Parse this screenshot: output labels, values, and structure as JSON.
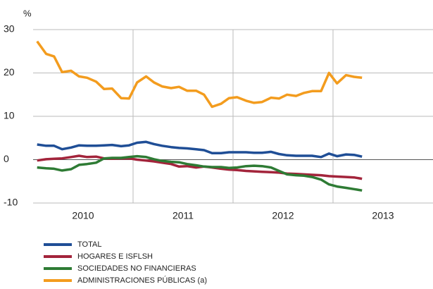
{
  "chart_data": {
    "type": "line",
    "ylabel": "%",
    "x": [
      2010.04,
      2010.13,
      2010.21,
      2010.29,
      2010.38,
      2010.46,
      2010.54,
      2010.63,
      2010.71,
      2010.79,
      2010.88,
      2010.96,
      2011.04,
      2011.13,
      2011.21,
      2011.29,
      2011.38,
      2011.46,
      2011.54,
      2011.63,
      2011.71,
      2011.79,
      2011.88,
      2011.96,
      2012.04,
      2012.13,
      2012.21,
      2012.29,
      2012.38,
      2012.46,
      2012.54,
      2012.63,
      2012.71,
      2012.79,
      2012.88,
      2012.96,
      2013.04,
      2013.13,
      2013.21,
      2013.29
    ],
    "xlim": [
      2010,
      2014
    ],
    "xticks": [
      {
        "value": 2010.5,
        "label": "2010"
      },
      {
        "value": 2011.5,
        "label": "2011"
      },
      {
        "value": 2012.5,
        "label": "2012"
      },
      {
        "value": 2013.5,
        "label": "2013"
      }
    ],
    "xgrid": [
      2011,
      2012,
      2013
    ],
    "ylim": [
      -10,
      30
    ],
    "yticks": [
      -10,
      0,
      10,
      20,
      30
    ],
    "grid": true,
    "series": [
      {
        "name": "TOTAL",
        "color": "#1f4e96",
        "values": [
          3.5,
          3.2,
          3.2,
          2.4,
          2.8,
          3.3,
          3.2,
          3.2,
          3.3,
          3.4,
          3.1,
          3.3,
          3.9,
          4.1,
          3.6,
          3.2,
          2.9,
          2.7,
          2.6,
          2.4,
          2.2,
          1.5,
          1.5,
          1.7,
          1.7,
          1.7,
          1.6,
          1.6,
          1.8,
          1.3,
          1.0,
          0.9,
          0.9,
          0.9,
          0.6,
          1.4,
          0.8,
          1.2,
          1.1,
          0.7
        ]
      },
      {
        "name": "HOGARES E ISFLSH",
        "color": "#a3243b",
        "values": [
          -0.2,
          0.1,
          0.2,
          0.3,
          0.6,
          0.9,
          0.6,
          0.7,
          0.3,
          0.2,
          0.3,
          0.3,
          0.0,
          -0.2,
          -0.4,
          -0.7,
          -1.0,
          -1.6,
          -1.5,
          -1.8,
          -1.6,
          -1.8,
          -2.1,
          -2.3,
          -2.4,
          -2.6,
          -2.7,
          -2.8,
          -2.9,
          -3.0,
          -3.2,
          -3.3,
          -3.4,
          -3.5,
          -3.6,
          -3.8,
          -3.9,
          -4.0,
          -4.1,
          -4.4
        ]
      },
      {
        "name": "SOCIEDADES NO FINANCIERAS",
        "color": "#2e7b34",
        "values": [
          -1.8,
          -2.0,
          -2.1,
          -2.5,
          -2.2,
          -1.2,
          -1.0,
          -0.7,
          0.3,
          0.4,
          0.4,
          0.6,
          0.8,
          0.6,
          0.1,
          -0.3,
          -0.5,
          -0.6,
          -1.0,
          -1.3,
          -1.6,
          -1.7,
          -1.7,
          -1.9,
          -1.8,
          -1.5,
          -1.4,
          -1.5,
          -1.8,
          -2.6,
          -3.4,
          -3.6,
          -3.7,
          -4.0,
          -4.6,
          -5.7,
          -6.2,
          -6.5,
          -6.8,
          -7.1
        ]
      },
      {
        "name": "ADMINISTRACIONES PÚBLICAS (a)",
        "color": "#f39c1e",
        "values": [
          27.3,
          24.4,
          23.8,
          20.2,
          20.5,
          19.2,
          18.9,
          18.0,
          16.3,
          16.4,
          14.2,
          14.1,
          17.8,
          19.2,
          17.8,
          16.9,
          16.5,
          16.8,
          15.9,
          15.9,
          15.0,
          12.2,
          12.9,
          14.2,
          14.4,
          13.6,
          13.1,
          13.3,
          14.3,
          14.1,
          15.0,
          14.7,
          15.4,
          15.8,
          15.8,
          20.0,
          17.6,
          19.5,
          19.1,
          18.9
        ]
      }
    ]
  }
}
